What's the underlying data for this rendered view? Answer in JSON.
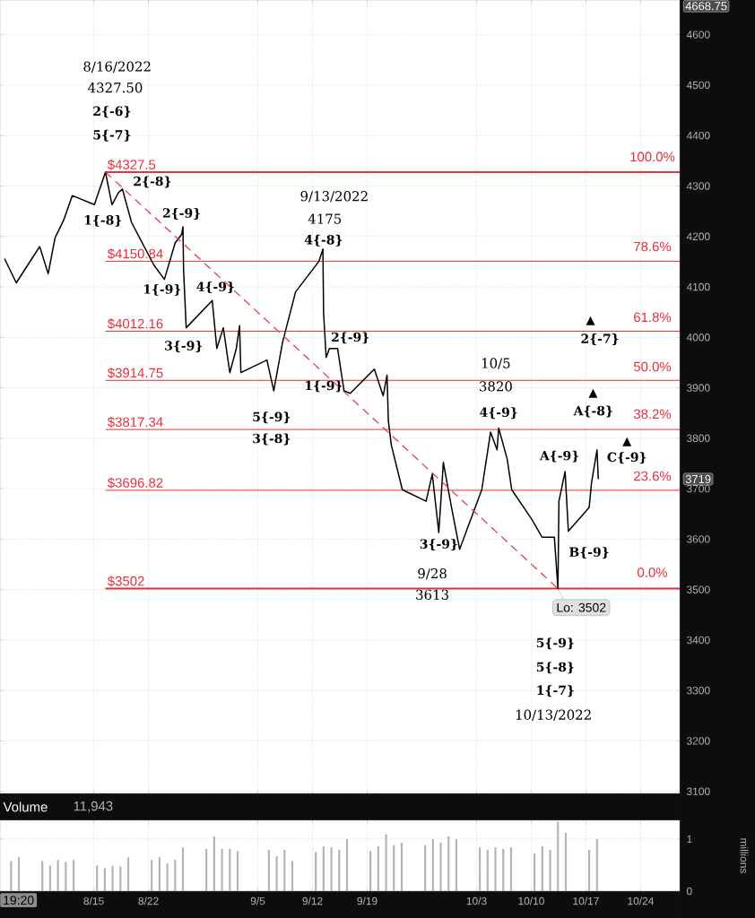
{
  "chart_data": [
    {
      "type": "line",
      "marker": "none",
      "grid": true,
      "tick_labels": "y",
      "xlim": [
        "2022-08-03",
        "2022-10-29"
      ],
      "ylim": [
        3096,
        4668.75
      ],
      "xticks": [
        {
          "value": "2022-08-15",
          "label": null
        },
        {
          "value": "2022-08-22",
          "label": null
        },
        {
          "value": "2022-09-05",
          "label": null
        },
        {
          "value": "2022-09-12",
          "label": null
        },
        {
          "value": "2022-09-19",
          "label": null
        },
        {
          "value": "2022-10-03",
          "label": null
        },
        {
          "value": "2022-10-10",
          "label": null
        },
        {
          "value": "2022-10-17",
          "label": null
        },
        {
          "value": "2022-10-24",
          "label": null
        }
      ],
      "yticks": [
        3100,
        3200,
        3300,
        3400,
        3500,
        3600,
        3700,
        3800,
        3900,
        4000,
        4100,
        4200,
        4300,
        4400,
        4500,
        4600
      ],
      "series": [
        {
          "color": "#000000",
          "x": [
            "2022-08-03T14:00",
            "2022-08-05T02:00",
            "2022-08-08T02:00",
            "2022-08-09T04:00",
            "2022-08-10T01:00",
            "2022-08-11T04:00",
            "2022-08-12T06:00",
            "2022-08-15T02:00",
            "2022-08-16T12:00",
            "2022-08-17T08:00",
            "2022-08-18T04:00",
            "2022-08-18T16:00",
            "2022-08-19T20:00",
            "2022-08-22T16:00",
            "2022-08-24T01:00",
            "2022-08-25T10:00",
            "2022-08-26T06:00",
            "2022-08-26T10:00",
            "2022-08-26T12:00",
            "2022-08-26T20:00",
            "2022-08-30T04:00",
            "2022-08-30T18:00",
            "2022-08-31T14:00",
            "2022-09-01T10:00",
            "2022-09-02T06:00",
            "2022-09-02T16:00",
            "2022-09-02T20:00",
            "2022-09-06T04:00",
            "2022-09-07T01:00",
            "2022-09-08T04:00",
            "2022-09-09T20:00",
            "2022-09-12T20:00",
            "2022-09-13T08:00",
            "2022-09-13T10:00",
            "2022-09-13T18:00",
            "2022-09-14T04:00",
            "2022-09-15T05:00",
            "2022-09-15T19:00",
            "2022-09-16T01:00",
            "2022-09-16T20:00",
            "2022-09-19T22:00",
            "2022-09-21T01:00",
            "2022-09-21T13:00",
            "2022-09-21T17:00",
            "2022-09-22T02:00",
            "2022-09-23T12:00",
            "2022-09-26T13:00",
            "2022-09-27T08:00",
            "2022-09-28T04:00",
            "2022-09-28T18:00",
            "2022-09-29T19:00",
            "2022-09-30T20:00",
            "2022-10-03T16:00",
            "2022-10-04T19:00",
            "2022-10-05T15:00",
            "2022-10-05T20:00",
            "2022-10-06T22:00",
            "2022-10-07T12:00",
            "2022-10-10T01:00",
            "2022-10-11T09:00",
            "2022-10-12T23:00",
            "2022-10-13T10:00",
            "2022-10-13T13:00",
            "2022-10-14T08:00",
            "2022-10-14T18:00",
            "2022-10-17T10:00",
            "2022-10-17T17:00",
            "2022-10-18T10:00",
            "2022-10-18T14:00"
          ],
          "values": [
            4156,
            4108,
            4180,
            4126,
            4197,
            4233,
            4281,
            4263,
            4327.5,
            4263,
            4287,
            4294,
            4228,
            4144,
            4115,
            4187,
            4204,
            4219,
            4133,
            4019,
            4073,
            3978,
            4019,
            3930,
            3978,
            4023,
            3930,
            3955,
            3894,
            3990,
            4090,
            4151,
            4175,
            4049,
            3960,
            3978,
            3978,
            3919,
            3894,
            3889,
            3937,
            3884,
            3925,
            3835,
            3787,
            3698,
            3675,
            3729,
            3613,
            3752,
            3663,
            3580,
            3698,
            3812,
            3777,
            3820,
            3759,
            3698,
            3640,
            3604,
            3604,
            3502,
            3675,
            3734,
            3616,
            3663,
            3711,
            3777,
            3719
          ]
        },
        {
          "type": "line",
          "color": "#e8303a",
          "line_style": "dashed",
          "x": [
            "2022-08-16T12:00",
            "2022-10-13T10:00"
          ],
          "values": [
            4327.5,
            3502
          ]
        }
      ],
      "ref_lines": [
        {
          "axis": "y",
          "value": 4327.5,
          "label": "$4327.5",
          "color": "#e8303a"
        },
        {
          "axis": "y",
          "value": 4150.84,
          "label": "$4150.84",
          "color": "#e8303a"
        },
        {
          "axis": "y",
          "value": 4012.16,
          "label": "$4012.16",
          "color": "#e8303a"
        },
        {
          "axis": "y",
          "value": 3914.75,
          "label": "$3914.75",
          "color": "#e8303a"
        },
        {
          "axis": "y",
          "value": 3817.34,
          "label": "$3817.34",
          "color": "#e8303a"
        },
        {
          "axis": "y",
          "value": 3696.82,
          "label": "$3696.82",
          "color": "#e8303a"
        },
        {
          "axis": "y",
          "value": 3502,
          "label": "$3502",
          "color": "#e8303a"
        }
      ],
      "annotations": [
        "8/16/2022",
        "4327.50",
        "2{-6}",
        "5{-7}",
        "2{-8}",
        "1{-8}",
        "2{-9}",
        "1{-9}",
        "4{-9}",
        "3{-9}",
        "9/13/2022",
        "4175",
        "4{-8}",
        "2{-9}",
        "1{-9}",
        "5{-9}",
        "3{-8}",
        "10/5",
        "3820",
        "4{-9}",
        "▲",
        "2{-7}",
        "▲",
        "A{-8}",
        "A{-9}",
        "▲",
        "C{-9}",
        "B{-9}",
        "3{-9}",
        "9/28",
        "3613",
        {
          "text": "Lo: 3502",
          "x": "2022-10-13T10:00",
          "y": 3502
        },
        "5{-9}",
        "5{-8}",
        "1{-7}",
        "10/13/2022",
        "100.0%",
        "78.6%",
        "61.8%",
        "50.0%",
        "38.2%",
        "23.6%",
        "0.0%",
        "4668.75",
        "3719"
      ]
    },
    {
      "type": "bar",
      "title": "Volume",
      "subtitle": "11,943",
      "ylabel": "millions",
      "grid": true,
      "xlim": [
        "2022-08-03",
        "2022-10-29"
      ],
      "ylim": [
        0,
        1.36
      ],
      "yticks": [
        0,
        1
      ],
      "xticks": [
        {
          "value": "2022-08-15",
          "label": "8/15"
        },
        {
          "value": "2022-08-22",
          "label": "8/22"
        },
        {
          "value": "2022-09-05",
          "label": "9/5"
        },
        {
          "value": "2022-09-12",
          "label": "9/12"
        },
        {
          "value": "2022-09-19",
          "label": "9/19"
        },
        {
          "value": "2022-10-03",
          "label": "10/3"
        },
        {
          "value": "2022-10-10",
          "label": "10/10"
        },
        {
          "value": "2022-10-17",
          "label": "10/17"
        },
        {
          "value": "2022-10-24",
          "label": "10/24"
        }
      ],
      "series": [
        {
          "color": "#b4b4b4",
          "x": [
            "2022-08-04T10:00",
            "2022-08-05T10:00",
            "2022-08-08T10:00",
            "2022-08-09T10:00",
            "2022-08-10T10:00",
            "2022-08-11T10:00",
            "2022-08-12T10:00",
            "2022-08-15T10:00",
            "2022-08-16T10:00",
            "2022-08-17T10:00",
            "2022-08-18T10:00",
            "2022-08-19T10:00",
            "2022-08-22T10:00",
            "2022-08-23T10:00",
            "2022-08-24T10:00",
            "2022-08-25T10:00",
            "2022-08-26T10:00",
            "2022-08-29T10:00",
            "2022-08-30T10:00",
            "2022-08-31T10:00",
            "2022-09-01T10:00",
            "2022-09-02T10:00",
            "2022-09-06T10:00",
            "2022-09-07T10:00",
            "2022-09-08T10:00",
            "2022-09-09T10:00",
            "2022-09-12T10:00",
            "2022-09-13T10:00",
            "2022-09-14T10:00",
            "2022-09-15T10:00",
            "2022-09-16T10:00",
            "2022-09-19T10:00",
            "2022-09-20T10:00",
            "2022-09-21T10:00",
            "2022-09-22T10:00",
            "2022-09-23T10:00",
            "2022-09-26T10:00",
            "2022-09-27T10:00",
            "2022-09-28T10:00",
            "2022-09-29T10:00",
            "2022-09-30T10:00",
            "2022-10-03T10:00",
            "2022-10-04T10:00",
            "2022-10-05T10:00",
            "2022-10-06T10:00",
            "2022-10-07T10:00",
            "2022-10-10T10:00",
            "2022-10-11T10:00",
            "2022-10-12T10:00",
            "2022-10-13T10:00",
            "2022-10-14T10:00",
            "2022-10-17T10:00",
            "2022-10-18T10:00"
          ],
          "values": [
            0.58,
            0.65,
            0.58,
            0.49,
            0.6,
            0.56,
            0.6,
            0.49,
            0.44,
            0.49,
            0.47,
            0.65,
            0.6,
            0.65,
            0.53,
            0.6,
            0.84,
            0.81,
            1.05,
            0.81,
            0.81,
            0.77,
            0.79,
            0.67,
            0.79,
            0.58,
            0.75,
            0.86,
            0.84,
            0.79,
            1.0,
            0.77,
            0.86,
            1.09,
            0.88,
            0.93,
            0.88,
            1.0,
            0.93,
            1.05,
            1.0,
            0.84,
            0.79,
            0.84,
            0.81,
            0.84,
            0.72,
            0.86,
            0.79,
            1.33,
            1.12,
            0.79,
            1.0
          ]
        }
      ],
      "annotations": [
        "19:20"
      ]
    }
  ]
}
